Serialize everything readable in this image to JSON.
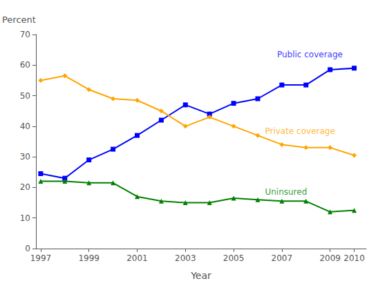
{
  "chart_data": {
    "type": "line",
    "xlabel": "Year",
    "ylabel": "Percent",
    "x": [
      1997,
      1998,
      1999,
      2000,
      2001,
      2002,
      2003,
      2004,
      2005,
      2006,
      2007,
      2008,
      2009,
      2010
    ],
    "series": [
      {
        "color": "#0000FF",
        "marker": "square",
        "values": [
          24.5,
          23.0,
          29.0,
          32.5,
          37.0,
          42.0,
          47.0,
          44.0,
          47.5,
          49.0,
          53.5,
          53.5,
          58.5,
          59.0
        ]
      },
      {
        "color": "#FFA500",
        "marker": "diamond",
        "values": [
          55.0,
          56.5,
          52.0,
          49.0,
          48.5,
          45.0,
          40.0,
          43.0,
          40.0,
          37.0,
          34.0,
          33.0,
          33.0,
          30.5
        ]
      },
      {
        "color": "#008000",
        "marker": "triangle",
        "values": [
          22.0,
          22.0,
          21.5,
          21.5,
          17.0,
          15.5,
          15.0,
          15.0,
          16.5,
          16.0,
          15.5,
          15.5,
          12.0,
          12.5
        ]
      }
    ],
    "annotations": [
      {
        "text": "Public coverage",
        "x": 2006.8,
        "y": 63.5,
        "color": "#0000FF"
      },
      {
        "text": "Private coverage",
        "x": 2006.3,
        "y": 38.5,
        "color": "#FFA500"
      },
      {
        "text": "Uninsured",
        "x": 2006.3,
        "y": 18.5,
        "color": "#008000"
      }
    ],
    "xlim": [
      1996.8,
      2010.5
    ],
    "xticks": [
      1997,
      1999,
      2001,
      2003,
      2005,
      2007,
      2009,
      2010
    ],
    "ylim": [
      0,
      70
    ],
    "yticks": [
      0,
      10,
      20,
      30,
      40,
      50,
      60,
      70
    ],
    "grid": false
  }
}
